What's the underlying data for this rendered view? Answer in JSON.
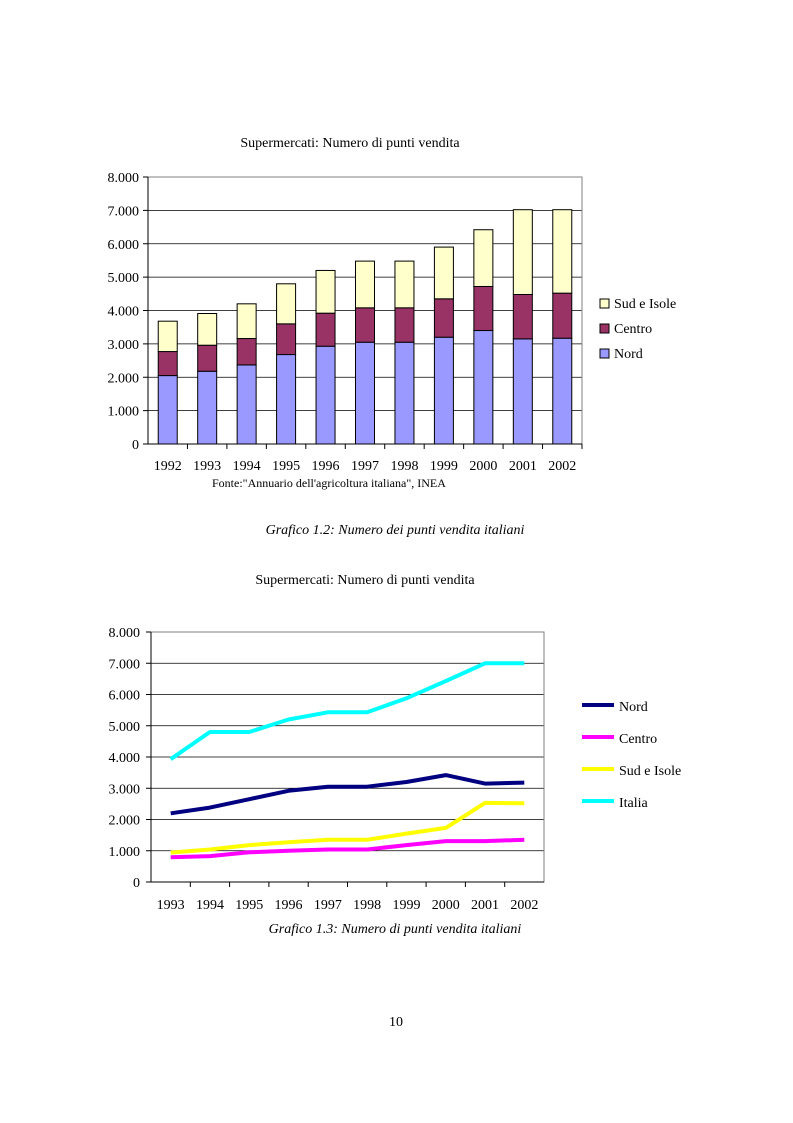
{
  "chart1": {
    "title": "Supermercati: Numero di punti vendita",
    "source": "Fonte:\"Annuario dell'agricoltura italiana\", INEA",
    "caption": "Grafico 1.2: Numero dei punti vendita italiani",
    "yticks": [
      "0",
      "1.000",
      "2.000",
      "3.000",
      "4.000",
      "5.000",
      "6.000",
      "7.000",
      "8.000"
    ]
  },
  "chart2": {
    "title": "Supermercati: Numero di punti vendita",
    "caption": "Grafico 1.3: Numero di punti vendita italiani",
    "yticks": [
      "0",
      "1.000",
      "2.000",
      "3.000",
      "4.000",
      "5.000",
      "6.000",
      "7.000",
      "8.000"
    ]
  },
  "page_number": "10",
  "chart_data": [
    {
      "type": "bar",
      "stacked": true,
      "title": "Supermercati: Numero di punti vendita",
      "categories": [
        "1992",
        "1993",
        "1994",
        "1995",
        "1996",
        "1997",
        "1998",
        "1999",
        "2000",
        "2001",
        "2002"
      ],
      "series": [
        {
          "name": "Nord",
          "color": "#9999ff",
          "values": [
            2050,
            2180,
            2370,
            2680,
            2930,
            3050,
            3050,
            3200,
            3400,
            3150,
            3170
          ]
        },
        {
          "name": "Centro",
          "color": "#993366",
          "values": [
            720,
            780,
            790,
            920,
            990,
            1030,
            1030,
            1150,
            1320,
            1330,
            1350
          ]
        },
        {
          "name": "Sud e Isole",
          "color": "#ffffcc",
          "values": [
            910,
            950,
            1040,
            1200,
            1280,
            1400,
            1400,
            1550,
            1700,
            2540,
            2500
          ]
        }
      ],
      "legend": [
        "Sud e Isole",
        "Centro",
        "Nord"
      ],
      "ylim": [
        0,
        8000
      ],
      "legend_position": "right"
    },
    {
      "type": "line",
      "title": "Supermercati: Numero di punti vendita",
      "categories": [
        "1993",
        "1994",
        "1995",
        "1996",
        "1997",
        "1998",
        "1999",
        "2000",
        "2001",
        "2002"
      ],
      "series": [
        {
          "name": "Nord",
          "color": "#000080",
          "values": [
            2200,
            2380,
            2650,
            2920,
            3050,
            3050,
            3200,
            3420,
            3150,
            3180
          ]
        },
        {
          "name": "Centro",
          "color": "#ff00ff",
          "values": [
            790,
            830,
            950,
            1000,
            1040,
            1040,
            1180,
            1310,
            1310,
            1350
          ]
        },
        {
          "name": "Sud e Isole",
          "color": "#ffff00",
          "values": [
            940,
            1040,
            1180,
            1270,
            1350,
            1350,
            1550,
            1730,
            2530,
            2520
          ]
        },
        {
          "name": "Italia",
          "color": "#00ffff",
          "values": [
            3930,
            4800,
            4800,
            5200,
            5430,
            5430,
            5880,
            6430,
            7000,
            7000
          ]
        }
      ],
      "ylim": [
        0,
        8000
      ],
      "legend_position": "right"
    }
  ]
}
